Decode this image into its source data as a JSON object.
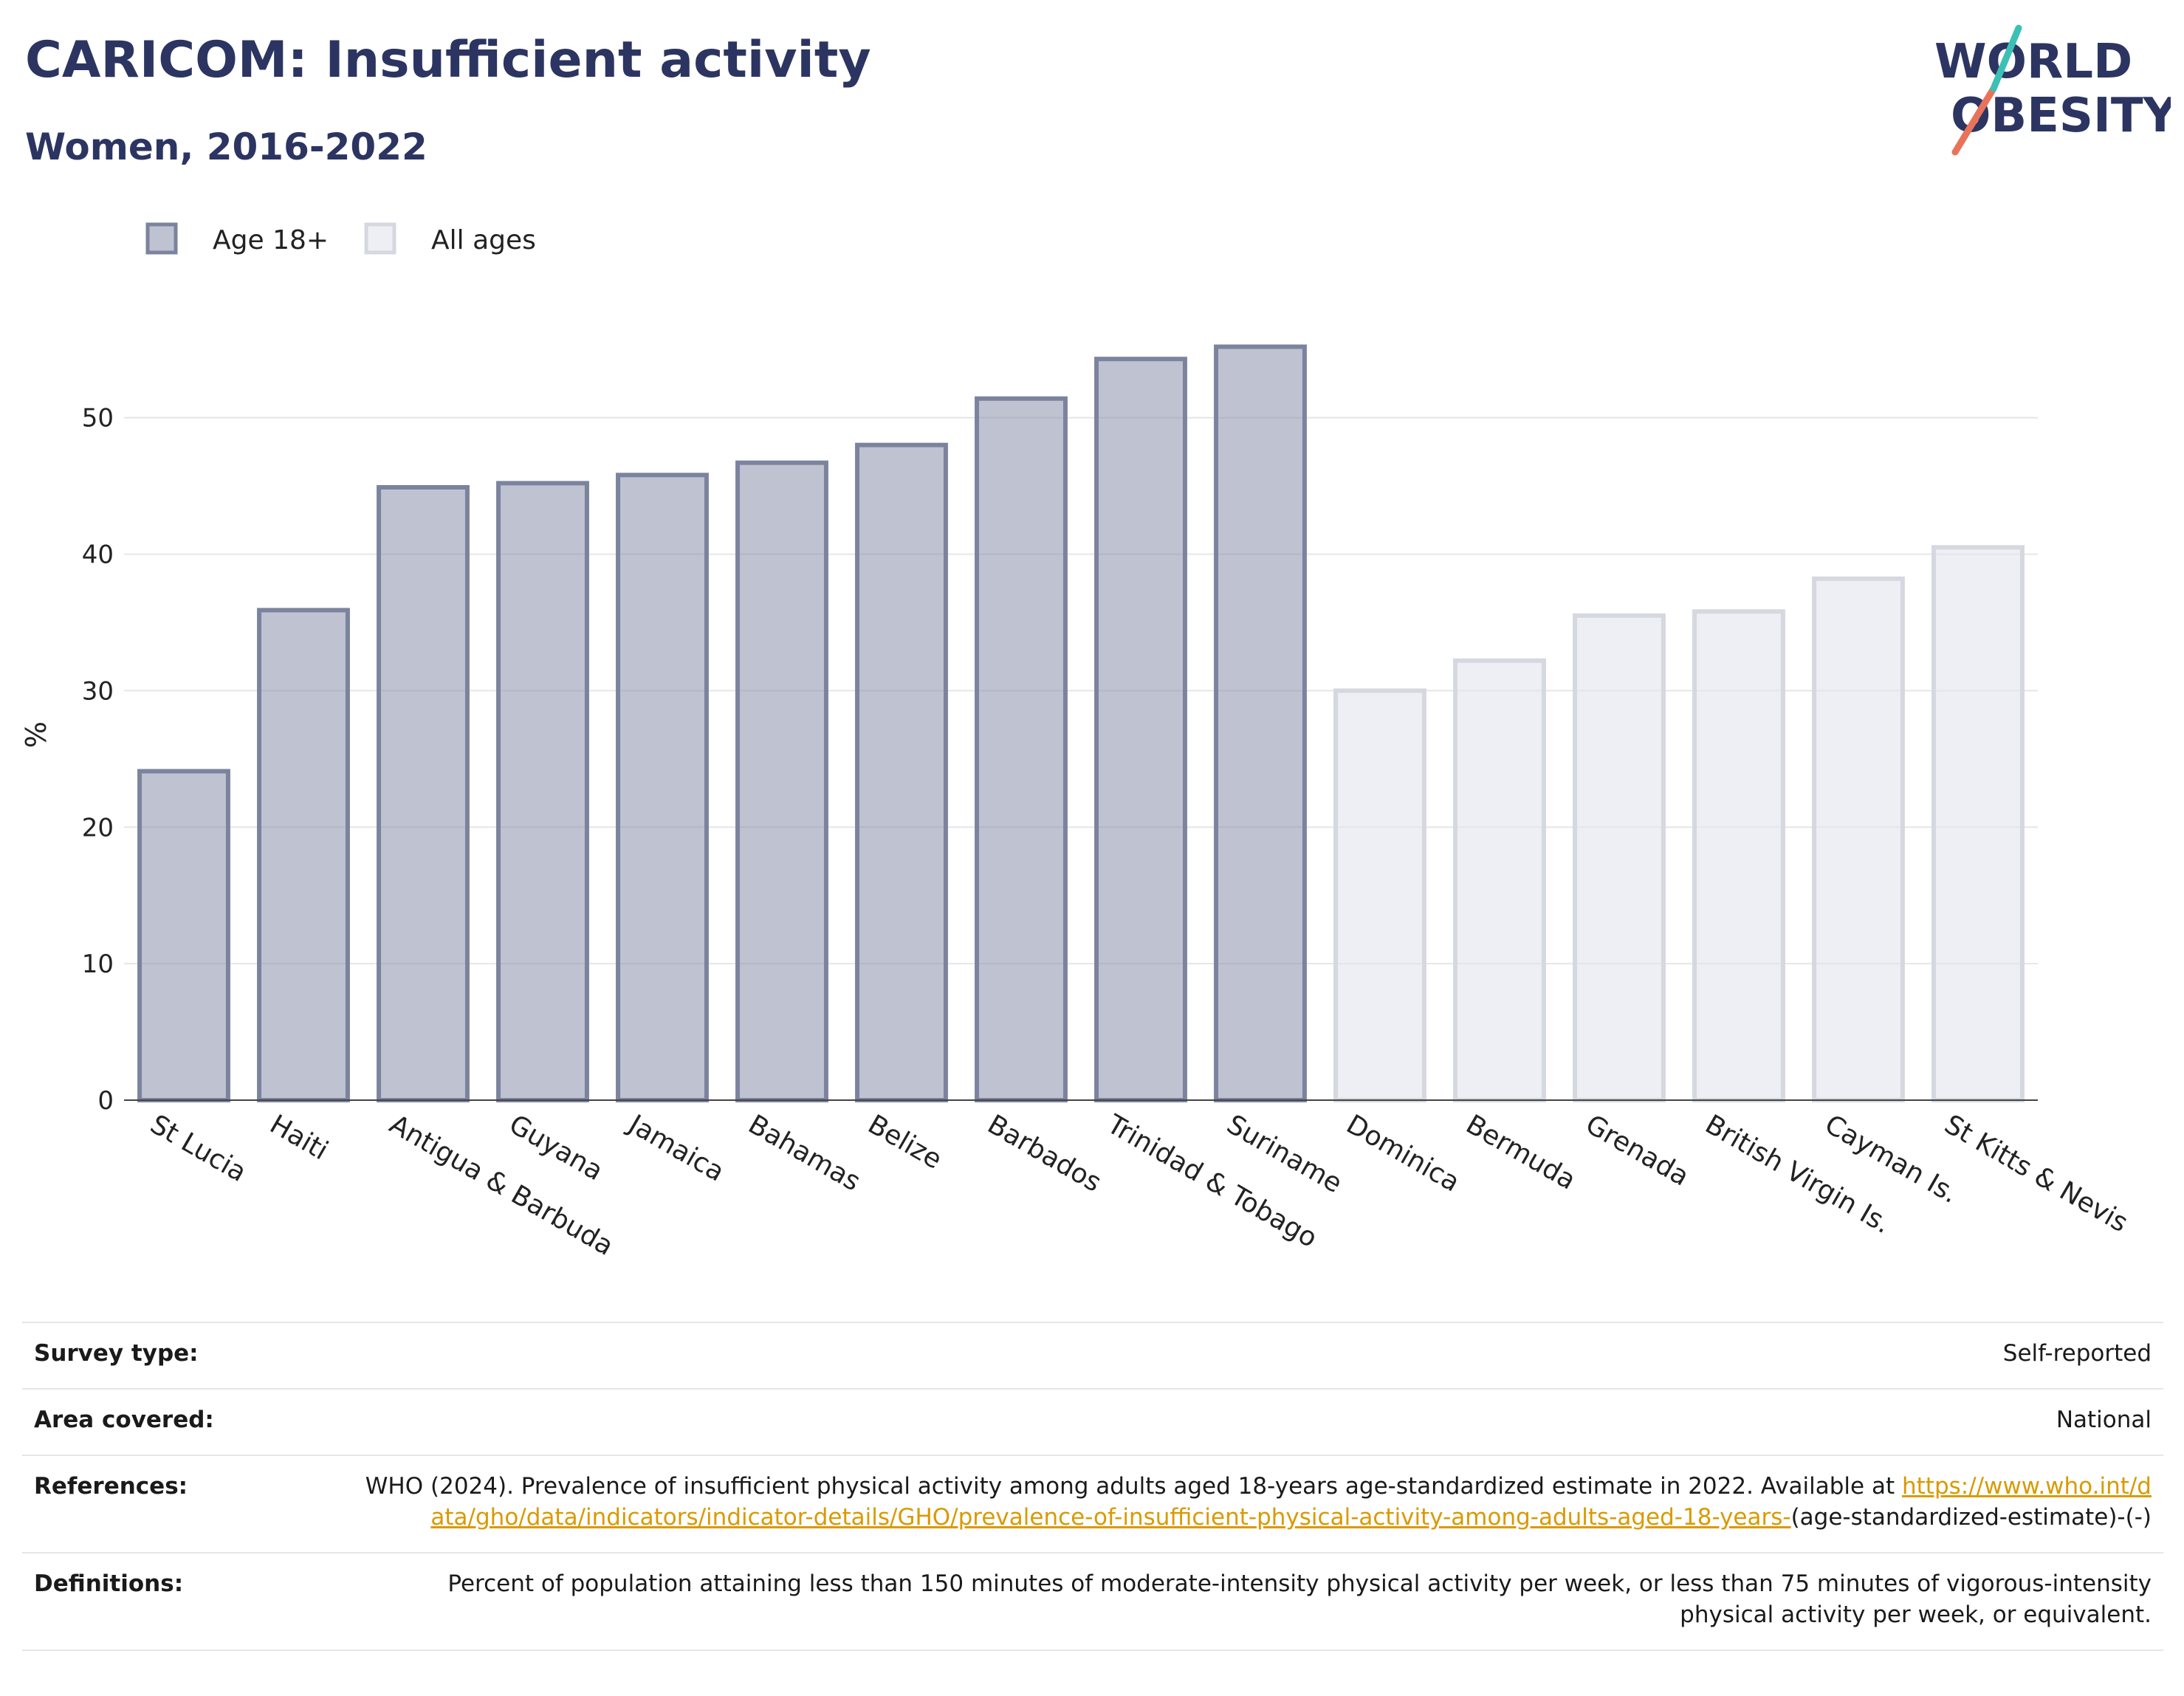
{
  "header": {
    "title": "CARICOM: Insufficient activity",
    "subtitle": "Women, 2016-2022"
  },
  "logo": {
    "line1": "WORLD",
    "line2": "OBESITY"
  },
  "chart_data": {
    "type": "bar",
    "ylabel": "%",
    "xlabel": "",
    "ylim": [
      0,
      60
    ],
    "yticks": [
      0,
      10,
      20,
      30,
      40,
      50
    ],
    "grid": true,
    "legend_position": "top-left",
    "categories": [
      "St Lucia",
      "Haiti",
      "Antigua & Barbuda",
      "Guyana",
      "Jamaica",
      "Bahamas",
      "Belize",
      "Barbados",
      "Trinidad & Tobago",
      "Suriname",
      "Dominica",
      "Bermuda",
      "Grenada",
      "British Virgin Is.",
      "Cayman Is.",
      "St Kitts & Nevis"
    ],
    "series": [
      {
        "name": "Age 18+",
        "color": "#8a91ac",
        "values": [
          24.1,
          35.9,
          44.9,
          45.2,
          45.8,
          46.7,
          48.0,
          51.4,
          54.3,
          55.2,
          null,
          null,
          null,
          null,
          null,
          null
        ]
      },
      {
        "name": "All ages",
        "color": "#e3e5ec",
        "values": [
          null,
          null,
          null,
          null,
          null,
          null,
          null,
          null,
          null,
          null,
          30.0,
          32.2,
          35.5,
          35.8,
          38.2,
          40.5
        ]
      }
    ]
  },
  "info": {
    "survey_type_label": "Survey type:",
    "survey_type_value": "Self-reported",
    "area_label": "Area covered:",
    "area_value": "National",
    "references_label": "References:",
    "references_text": "WHO (2024). Prevalence of insufficient physical activity among adults aged 18-years age-standardized estimate in 2022. Available at",
    "references_link": "https://www.who.int/data/gho/data/indicators/indicator-details/GHO/prevalence-of-insufficient-physical-activity-among-adults-aged-18-years-",
    "references_tail": "(age-standardized-estimate)-(-)",
    "definitions_label": "Definitions:",
    "definitions_value": "Percent of population attaining less than 150 minutes of moderate-intensity physical activity per week, or less than 75 minutes of vigorous-intensity physical activity per week, or equivalent."
  }
}
